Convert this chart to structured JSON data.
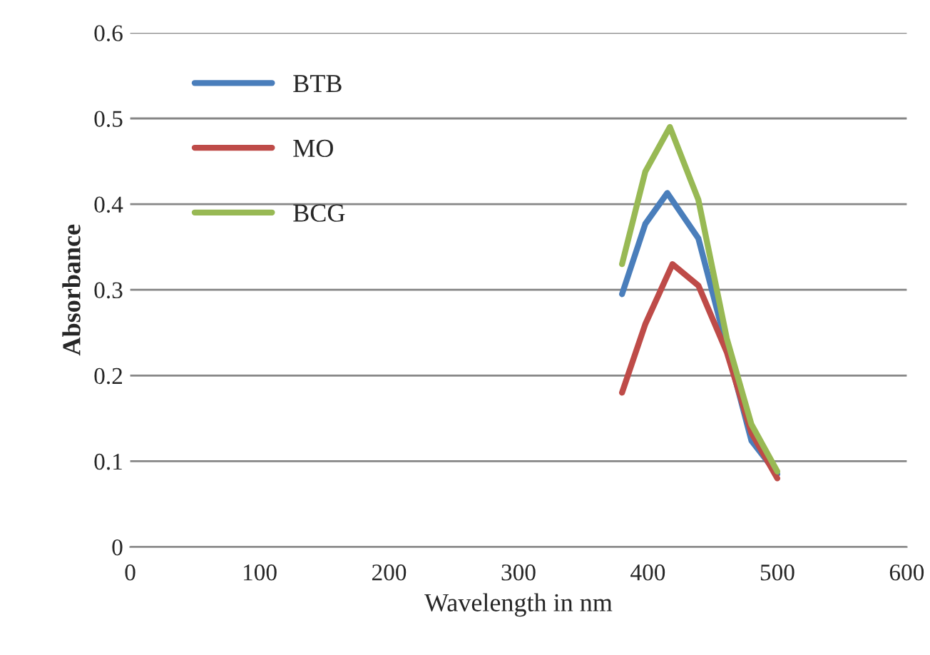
{
  "chart_data": {
    "type": "line",
    "xlabel": "Wavelength in nm",
    "ylabel": "Absorbance",
    "xlim": [
      0,
      600
    ],
    "xticks": [
      0,
      100,
      200,
      300,
      400,
      500,
      600
    ],
    "ylim": [
      0,
      0.6
    ],
    "yticks": [
      {
        "value": 0,
        "label": "0"
      },
      0.1,
      0.2,
      0.3,
      0.4,
      0.5,
      0.6
    ],
    "grid": "y",
    "legend": "top left",
    "marker": "none",
    "line_style": "solid",
    "series": [
      {
        "name": "BTB",
        "color": "#4a7ebb",
        "x": [
          380,
          398,
          415,
          439,
          461,
          480,
          500
        ],
        "values": [
          0.295,
          0.377,
          0.413,
          0.36,
          0.233,
          0.124,
          0.085
        ]
      },
      {
        "name": "MO",
        "color": "#be4b48",
        "x": [
          380,
          398,
          419,
          439,
          461,
          480,
          500
        ],
        "values": [
          0.18,
          0.26,
          0.33,
          0.305,
          0.227,
          0.133,
          0.08
        ]
      },
      {
        "name": "BCG",
        "color": "#98b954",
        "x": [
          380,
          398,
          417,
          439,
          461,
          480,
          500
        ],
        "values": [
          0.33,
          0.438,
          0.49,
          0.405,
          0.243,
          0.143,
          0.088
        ]
      }
    ]
  }
}
